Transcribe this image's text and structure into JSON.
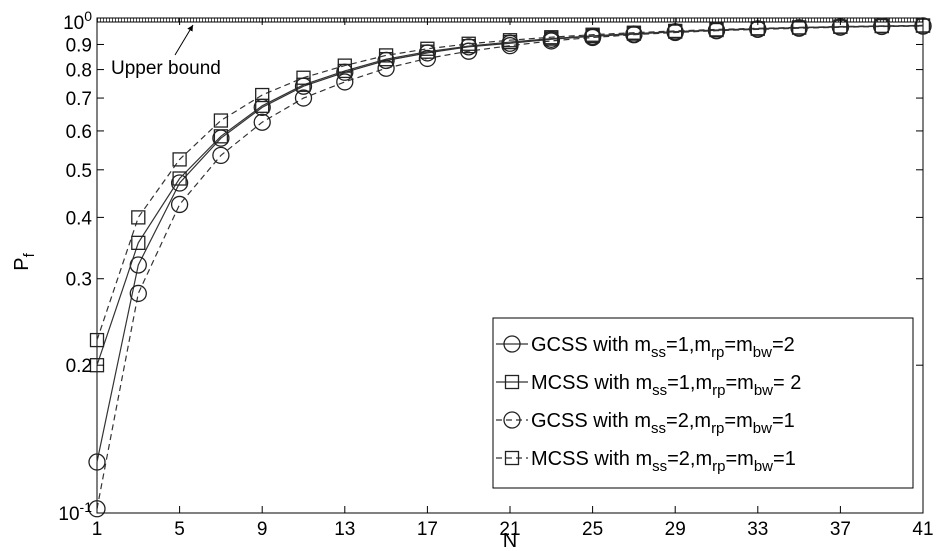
{
  "chart_data": {
    "type": "line",
    "xlabel": "N",
    "ylabel_main": "P",
    "ylabel_sub": "f",
    "x_ticks": [
      1,
      5,
      9,
      13,
      17,
      21,
      25,
      29,
      33,
      37,
      41
    ],
    "y_scale": "log",
    "ylim": [
      0.1,
      1.0
    ],
    "y_ticks": [
      {
        "value": 0.1,
        "base": "10",
        "exp": "-1"
      },
      {
        "value": 0.2,
        "label": "0.2"
      },
      {
        "value": 0.3,
        "label": "0.3"
      },
      {
        "value": 0.4,
        "label": "0.4"
      },
      {
        "value": 0.5,
        "label": "0.5"
      },
      {
        "value": 0.6,
        "label": "0.6"
      },
      {
        "value": 0.7,
        "label": "0.7"
      },
      {
        "value": 0.8,
        "label": "0.8"
      },
      {
        "value": 0.9,
        "label": "0.9"
      },
      {
        "value": 1.0,
        "base": "10",
        "exp": "0"
      }
    ],
    "xlim": [
      1,
      41
    ],
    "grid": false,
    "legend_position": "bottom-right",
    "annotation": {
      "text": "Upper bound",
      "x": 7,
      "y": 0.82,
      "arrow_to": [
        9.3,
        1.0
      ]
    },
    "upper_bound": 1.0,
    "series": [
      {
        "marker": "circle",
        "dash": "solid",
        "legend": {
          "pre": "GCSS with m",
          "parts": [
            [
              "ss",
              "=1,m"
            ],
            [
              "rp",
              "=m"
            ],
            [
              "bw",
              "=2"
            ]
          ]
        },
        "x": [
          1,
          3,
          5,
          7,
          9,
          11,
          13,
          15,
          17,
          19,
          21,
          23,
          25,
          27,
          29,
          31,
          33,
          35,
          37,
          39,
          41
        ],
        "y": [
          0.127,
          0.32,
          0.47,
          0.58,
          0.67,
          0.74,
          0.79,
          0.835,
          0.865,
          0.89,
          0.905,
          0.922,
          0.935,
          0.945,
          0.955,
          0.962,
          0.968,
          0.973,
          0.977,
          0.98,
          0.982
        ]
      },
      {
        "marker": "square",
        "dash": "solid",
        "legend": {
          "pre": "MCSS with m",
          "parts": [
            [
              "ss",
              "=1,m"
            ],
            [
              "rp",
              "=m"
            ],
            [
              "bw",
              "= 2"
            ]
          ]
        },
        "x": [
          1,
          3,
          5,
          7,
          9,
          11,
          13,
          15,
          17,
          19,
          21,
          23,
          25,
          27,
          29,
          31,
          33,
          35,
          37,
          39,
          41
        ],
        "y": [
          0.2,
          0.355,
          0.48,
          0.585,
          0.675,
          0.745,
          0.795,
          0.84,
          0.87,
          0.893,
          0.91,
          0.925,
          0.937,
          0.947,
          0.956,
          0.963,
          0.969,
          0.974,
          0.978,
          0.981,
          0.983
        ]
      },
      {
        "marker": "circle",
        "dash": "dashed",
        "legend": {
          "pre": "GCSS with m",
          "parts": [
            [
              "ss",
              "=2,m"
            ],
            [
              "rp",
              "=m"
            ],
            [
              "bw",
              "=1"
            ]
          ]
        },
        "x": [
          1,
          3,
          5,
          7,
          9,
          11,
          13,
          15,
          17,
          19,
          21,
          23,
          25,
          27,
          29,
          31,
          33,
          35,
          37,
          39,
          41
        ],
        "y": [
          0.102,
          0.28,
          0.425,
          0.535,
          0.625,
          0.7,
          0.755,
          0.805,
          0.843,
          0.872,
          0.895,
          0.915,
          0.93,
          0.942,
          0.952,
          0.96,
          0.966,
          0.971,
          0.976,
          0.979,
          0.981
        ]
      },
      {
        "marker": "square",
        "dash": "dashed",
        "legend": {
          "pre": "MCSS with m",
          "parts": [
            [
              "ss",
              "=2,m"
            ],
            [
              "rp",
              "=m"
            ],
            [
              "bw",
              "=1"
            ]
          ]
        },
        "x": [
          1,
          3,
          5,
          7,
          9,
          11,
          13,
          15,
          17,
          19,
          21,
          23,
          25,
          27,
          29,
          31,
          33,
          35,
          37,
          39,
          41
        ],
        "y": [
          0.225,
          0.4,
          0.525,
          0.63,
          0.71,
          0.77,
          0.815,
          0.855,
          0.882,
          0.903,
          0.918,
          0.931,
          0.942,
          0.951,
          0.959,
          0.966,
          0.971,
          0.975,
          0.979,
          0.982,
          0.984
        ]
      }
    ]
  }
}
